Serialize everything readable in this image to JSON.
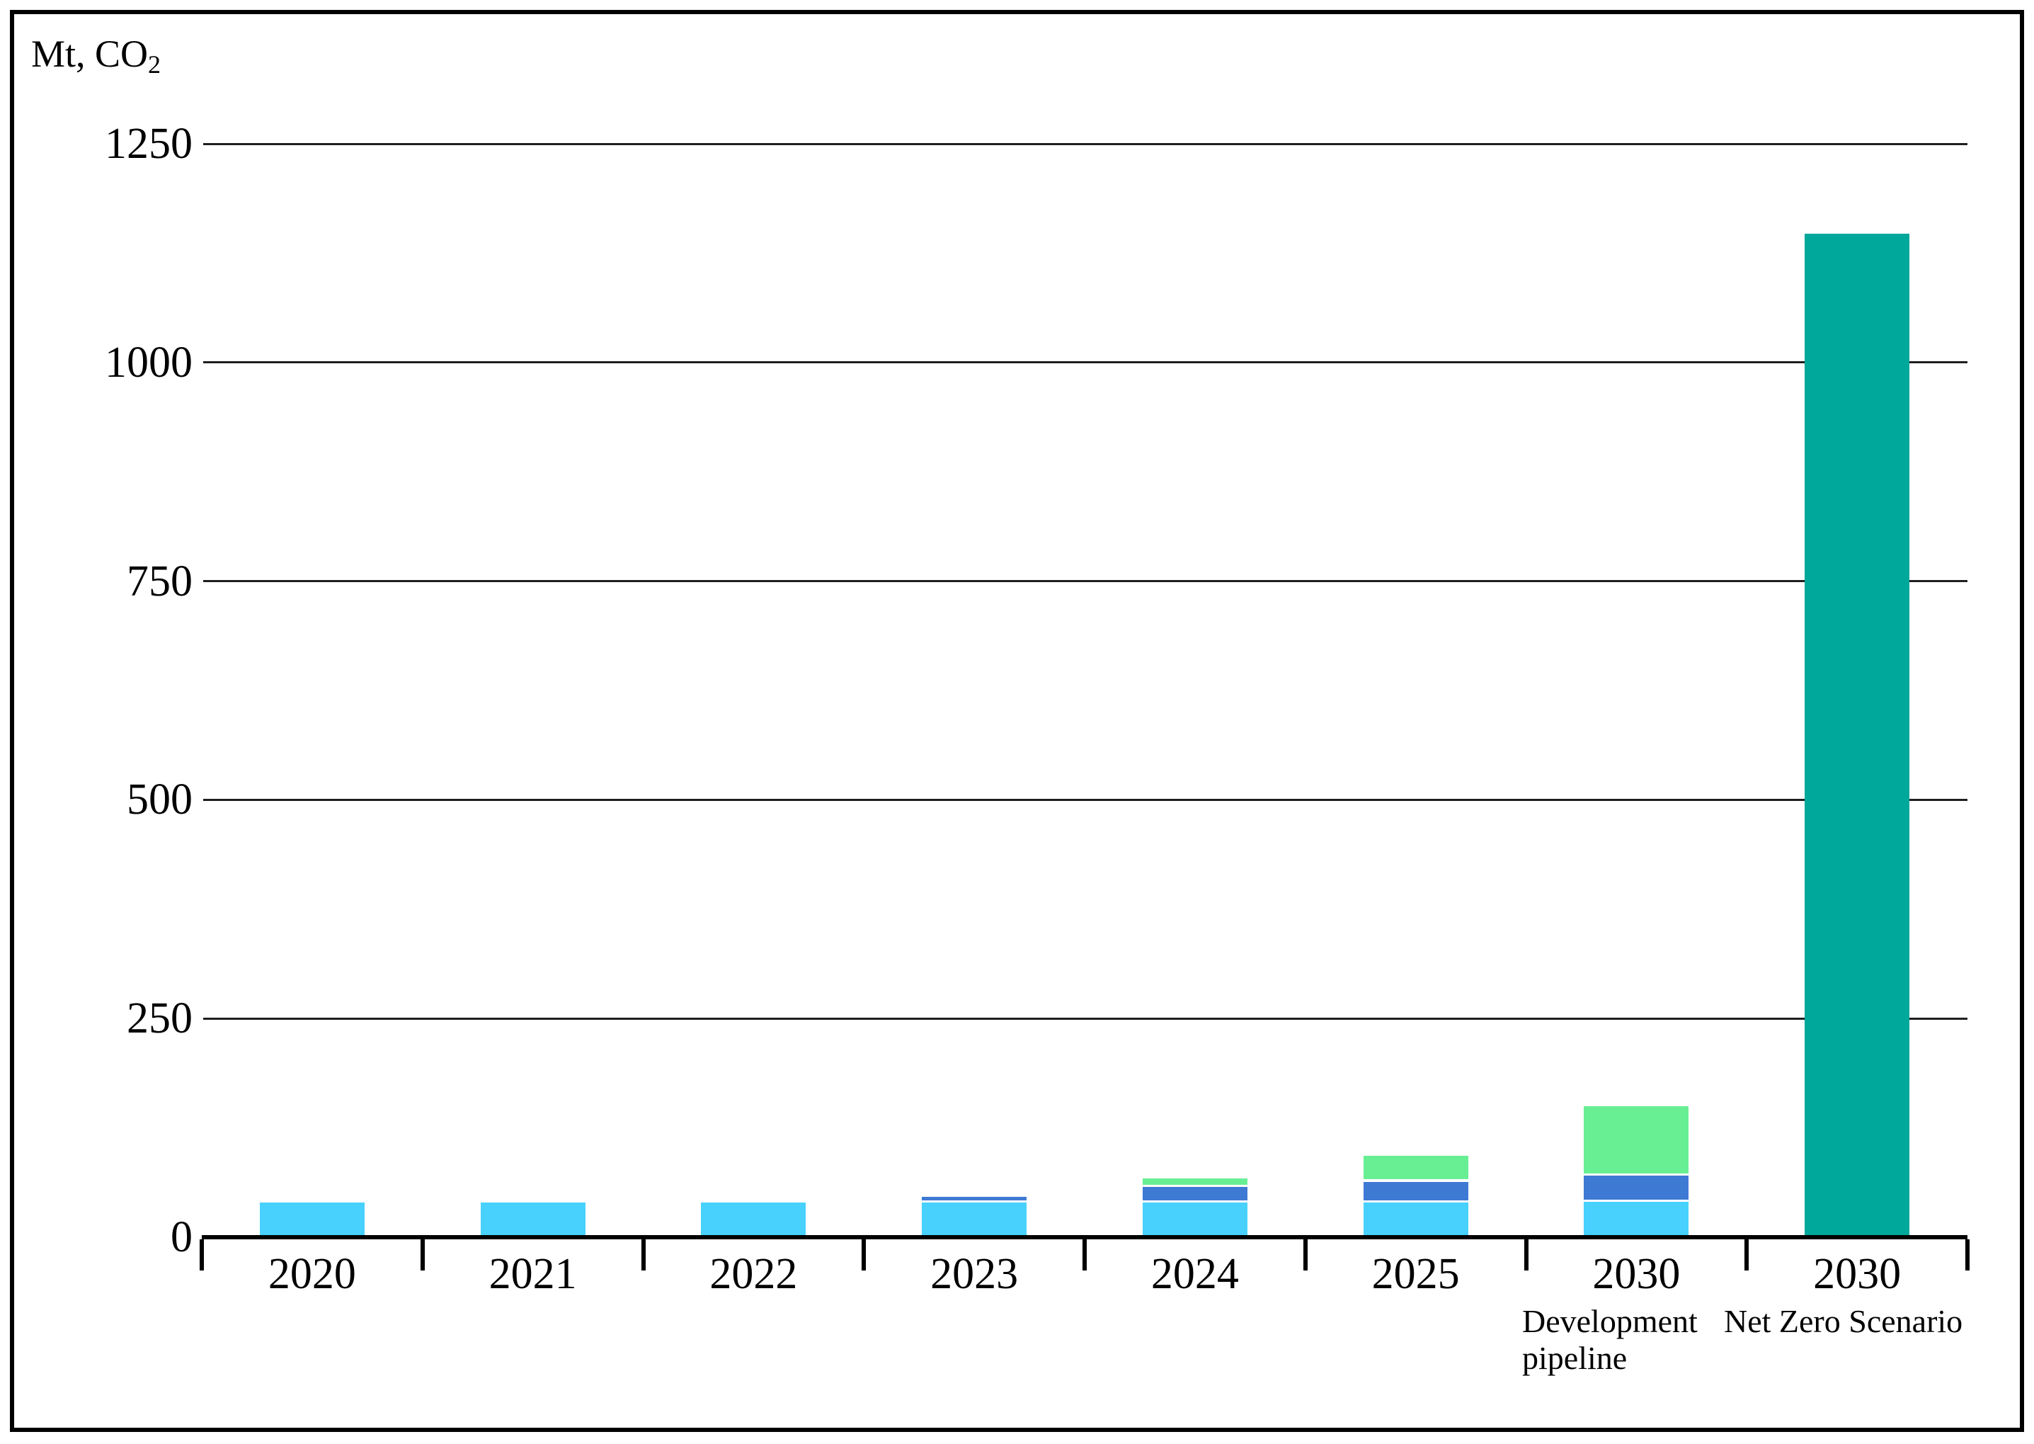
{
  "unit_label": {
    "main": "Mt, CO",
    "sub": "2"
  },
  "colors": {
    "light_blue": "#48D1FC",
    "blue": "#3E7AD4",
    "green": "#68EF94",
    "teal": "#00A79B",
    "axis": "#000000",
    "gridline": "#1f1f1f",
    "background": "#ffffff"
  },
  "chart_data": {
    "type": "bar",
    "stacked": true,
    "title": "",
    "unit": "Mt, CO2",
    "ylabel": "Mt, CO2",
    "xlabel": "",
    "ylim": [
      0,
      1250
    ],
    "yticks": [
      0,
      250,
      500,
      750,
      1000,
      1250
    ],
    "grid": true,
    "legend": "none",
    "categories": [
      "2020",
      "2021",
      "2022",
      "2023",
      "2024",
      "2025",
      "2030",
      "2030"
    ],
    "category_sublabels": [
      "",
      "",
      "",
      "",
      "",
      "",
      "Development pipeline",
      "Net Zero Scenario"
    ],
    "series": [
      {
        "name": "light-blue",
        "color_key": "light_blue",
        "values": [
          37,
          37,
          37,
          37,
          37,
          37,
          38,
          0
        ]
      },
      {
        "name": "blue",
        "color_key": "blue",
        "values": [
          0,
          0,
          0,
          7,
          18,
          24,
          30,
          0
        ]
      },
      {
        "name": "green",
        "color_key": "green",
        "values": [
          0,
          0,
          0,
          0,
          10,
          30,
          79,
          0
        ]
      },
      {
        "name": "teal",
        "color_key": "teal",
        "values": [
          0,
          0,
          0,
          0,
          0,
          0,
          0,
          1145
        ]
      }
    ],
    "totals": [
      37,
      37,
      37,
      44,
      65,
      91,
      147,
      1145
    ]
  }
}
